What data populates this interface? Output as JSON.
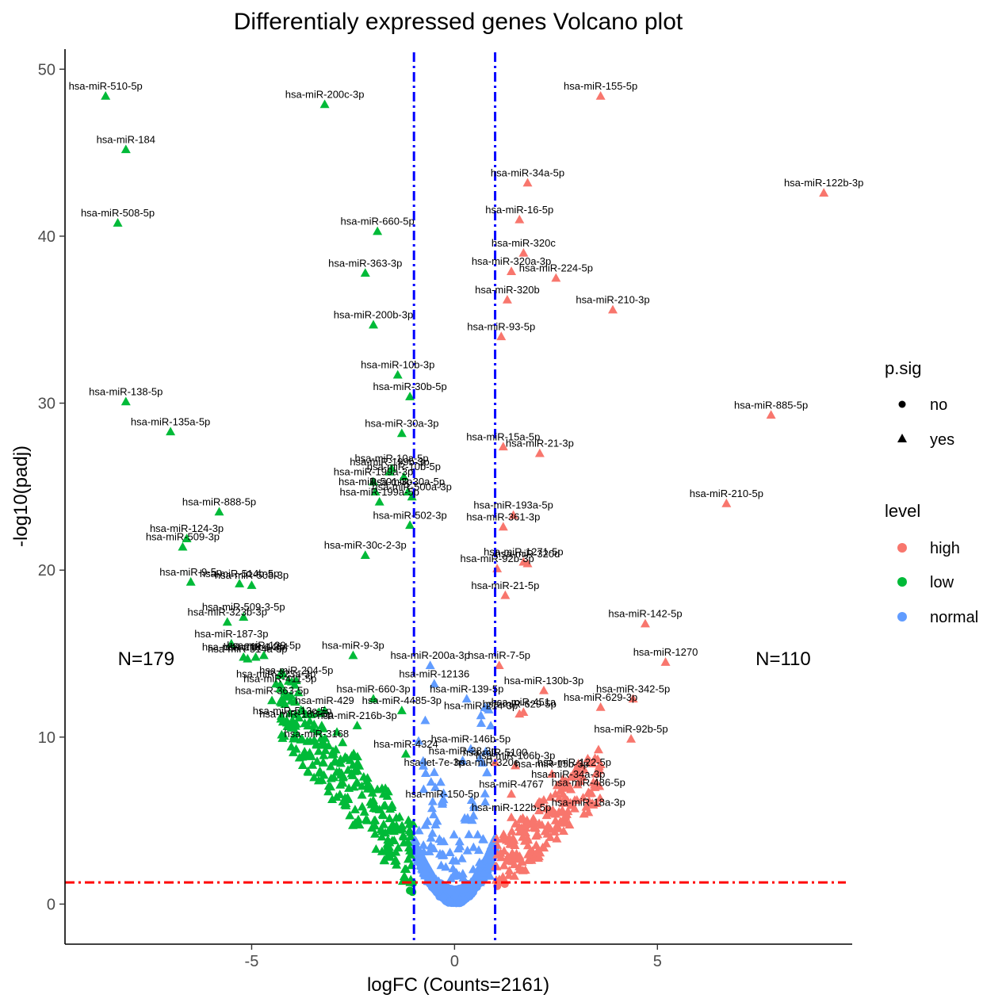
{
  "chart_data": {
    "type": "scatter",
    "title": "Differentialy expressed genes Volcano plot",
    "xlabel": "logFC (Counts=2161)",
    "ylabel": "-log10(padj)",
    "xlim": [
      -9.6,
      9.8
    ],
    "ylim": [
      -2.4,
      51.2
    ],
    "x_ticks": [
      -5,
      0,
      5
    ],
    "y_ticks": [
      0,
      10,
      20,
      30,
      40,
      50
    ],
    "x_tick_labels": [
      "-5",
      "0",
      "5"
    ],
    "y_tick_labels": [
      "0",
      "10",
      "20",
      "30",
      "40",
      "50"
    ],
    "grid": false,
    "legend_position": "right",
    "thresholds": {
      "logfc": [
        -1,
        1
      ],
      "logfc_color": "#0000ff",
      "padj_neglog10": 1.3,
      "padj_color": "#ff0000"
    },
    "annotations": [
      {
        "text": "N=179",
        "x": -7.6,
        "y": 14.3
      },
      {
        "text": "N=110",
        "x": 8.1,
        "y": 14.3
      }
    ],
    "legend": {
      "shape": {
        "title": "p.sig",
        "entries": [
          "no",
          "yes"
        ]
      },
      "color": {
        "title": "level",
        "entries": [
          "high",
          "low",
          "normal"
        ]
      }
    },
    "colors": {
      "high": "#f8766d",
      "low": "#00ba38",
      "normal": "#619cff"
    },
    "series": [
      {
        "name": "high",
        "labeled": [
          {
            "label": "hsa-miR-155-5p",
            "x": 3.6,
            "y": 48.4
          },
          {
            "label": "hsa-miR-122b-3p",
            "x": 9.1,
            "y": 42.6
          },
          {
            "label": "hsa-miR-34a-5p",
            "x": 1.8,
            "y": 43.2
          },
          {
            "label": "hsa-miR-16-5p",
            "x": 1.6,
            "y": 41.0
          },
          {
            "label": "hsa-miR-320c",
            "x": 1.7,
            "y": 39.0
          },
          {
            "label": "hsa-miR-320a-3p",
            "x": 1.4,
            "y": 37.9
          },
          {
            "label": "hsa-miR-224-5p",
            "x": 2.5,
            "y": 37.5
          },
          {
            "label": "hsa-miR-320b",
            "x": 1.3,
            "y": 36.2
          },
          {
            "label": "hsa-miR-210-3p",
            "x": 3.9,
            "y": 35.6
          },
          {
            "label": "hsa-miR-93-5p",
            "x": 1.15,
            "y": 34.0
          },
          {
            "label": "hsa-miR-885-5p",
            "x": 7.8,
            "y": 29.3
          },
          {
            "label": "hsa-miR-15a-5p",
            "x": 1.2,
            "y": 27.4
          },
          {
            "label": "hsa-miR-21-3p",
            "x": 2.1,
            "y": 27.0
          },
          {
            "label": "hsa-miR-210-5p",
            "x": 6.7,
            "y": 24.0
          },
          {
            "label": "hsa-miR-193a-5p",
            "x": 1.45,
            "y": 23.3
          },
          {
            "label": "hsa-miR-361-3p",
            "x": 1.2,
            "y": 22.6
          },
          {
            "label": "hsa-miR-1271-5p",
            "x": 1.7,
            "y": 20.5
          },
          {
            "label": "hsa-miR-320d",
            "x": 1.8,
            "y": 20.4
          },
          {
            "label": "hsa-miR-92b-3p",
            "x": 1.05,
            "y": 20.1
          },
          {
            "label": "hsa-miR-21-5p",
            "x": 1.25,
            "y": 18.5
          },
          {
            "label": "hsa-miR-142-5p",
            "x": 4.7,
            "y": 16.8
          },
          {
            "label": "hsa-miR-1270",
            "x": 5.2,
            "y": 14.5
          },
          {
            "label": "hsa-miR-7-5p",
            "x": 1.1,
            "y": 14.3
          },
          {
            "label": "hsa-miR-130b-3p",
            "x": 2.2,
            "y": 12.8
          },
          {
            "label": "hsa-miR-342-5p",
            "x": 4.4,
            "y": 12.3
          },
          {
            "label": "hsa-miR-629-5p",
            "x": 1.6,
            "y": 11.4
          },
          {
            "label": "hsa-miR-629-3p",
            "x": 3.6,
            "y": 11.8
          },
          {
            "label": "hsa-miR-92b-5p",
            "x": 4.35,
            "y": 9.9
          },
          {
            "label": "hsa-miR-451a",
            "x": 1.7,
            "y": 11.5
          },
          {
            "label": "hsa-miR-5100",
            "x": 1.0,
            "y": 8.5
          },
          {
            "label": "hsa-miR-106b-3p",
            "x": 1.5,
            "y": 8.3
          },
          {
            "label": "hsa-miR-122-5p",
            "x": 2.95,
            "y": 7.9
          },
          {
            "label": "hsa-miR-15b-3p",
            "x": 2.4,
            "y": 7.8
          },
          {
            "label": "hsa-miR-34a-3p",
            "x": 2.8,
            "y": 7.2
          },
          {
            "label": "hsa-miR-4767",
            "x": 1.4,
            "y": 6.6
          },
          {
            "label": "hsa-miR-486-5p",
            "x": 3.3,
            "y": 6.7
          },
          {
            "label": "hsa-miR-122b-5p",
            "x": 1.4,
            "y": 5.2
          },
          {
            "label": "hsa-miR-18a-3p",
            "x": 3.3,
            "y": 5.5
          }
        ]
      },
      {
        "name": "low",
        "labeled": [
          {
            "label": "hsa-miR-510-5p",
            "x": -8.6,
            "y": 48.4
          },
          {
            "label": "hsa-miR-200c-3p",
            "x": -3.2,
            "y": 47.9
          },
          {
            "label": "hsa-miR-184",
            "x": -8.1,
            "y": 45.2
          },
          {
            "label": "hsa-miR-508-5p",
            "x": -8.3,
            "y": 40.8
          },
          {
            "label": "hsa-miR-660-5p",
            "x": -1.9,
            "y": 40.3
          },
          {
            "label": "hsa-miR-363-3p",
            "x": -2.2,
            "y": 37.8
          },
          {
            "label": "hsa-miR-200b-3p",
            "x": -2.0,
            "y": 34.7
          },
          {
            "label": "hsa-miR-10b-3p",
            "x": -1.4,
            "y": 31.7
          },
          {
            "label": "hsa-miR-30b-5p",
            "x": -1.1,
            "y": 30.4
          },
          {
            "label": "hsa-miR-138-5p",
            "x": -8.1,
            "y": 30.1
          },
          {
            "label": "hsa-miR-30a-3p",
            "x": -1.3,
            "y": 28.2
          },
          {
            "label": "hsa-miR-135a-5p",
            "x": -7.0,
            "y": 28.3
          },
          {
            "label": "hsa-miR-10a-5p",
            "x": -1.55,
            "y": 26.1
          },
          {
            "label": "hsa-miR-199b-3p",
            "x": -1.6,
            "y": 25.9
          },
          {
            "label": "hsa-miR-10b-5p",
            "x": -1.25,
            "y": 25.6
          },
          {
            "label": "hsa-miR-199a-3p",
            "x": -2.0,
            "y": 25.3
          },
          {
            "label": "hsa-miR-30a-5p",
            "x": -1.15,
            "y": 24.7
          },
          {
            "label": "hsa-miR-501-3p",
            "x": -1.95,
            "y": 24.7
          },
          {
            "label": "hsa-miR-500a-3p",
            "x": -1.05,
            "y": 24.4
          },
          {
            "label": "hsa-miR-199a-5p",
            "x": -1.85,
            "y": 24.1
          },
          {
            "label": "hsa-miR-888-5p",
            "x": -5.8,
            "y": 23.5
          },
          {
            "label": "hsa-miR-502-3p",
            "x": -1.1,
            "y": 22.7
          },
          {
            "label": "hsa-miR-124-3p",
            "x": -6.6,
            "y": 21.9
          },
          {
            "label": "hsa-miR-509-3p",
            "x": -6.7,
            "y": 21.4
          },
          {
            "label": "hsa-miR-30c-2-3p",
            "x": -2.2,
            "y": 20.9
          },
          {
            "label": "hsa-miR-514b-5p",
            "x": -5.3,
            "y": 19.2
          },
          {
            "label": "hsa-miR-9-5p",
            "x": -6.5,
            "y": 19.3
          },
          {
            "label": "hsa-miR-508-3p",
            "x": -5.0,
            "y": 19.1
          },
          {
            "label": "hsa-miR-509-3-5p",
            "x": -5.2,
            "y": 17.2
          },
          {
            "label": "hsa-miR-323b-3p",
            "x": -5.6,
            "y": 16.9
          },
          {
            "label": "hsa-miR-187-3p",
            "x": -5.5,
            "y": 15.6
          },
          {
            "label": "hsa-miR-129-5p",
            "x": -4.7,
            "y": 14.9
          },
          {
            "label": "hsa-miR-4484",
            "x": -4.9,
            "y": 14.8
          },
          {
            "label": "hsa-miR-218-1-3p",
            "x": -5.2,
            "y": 14.8
          },
          {
            "label": "hsa-miR-514a-5p",
            "x": -5.1,
            "y": 14.7
          },
          {
            "label": "hsa-miR-9-3p",
            "x": -2.5,
            "y": 14.9
          },
          {
            "label": "hsa-miR-323a-3p",
            "x": -4.4,
            "y": 13.2
          },
          {
            "label": "hsa-miR-411-5p",
            "x": -4.3,
            "y": 12.9
          },
          {
            "label": "hsa-miR-204-5p",
            "x": -3.9,
            "y": 13.4
          },
          {
            "label": "hsa-miR-363-5p",
            "x": -4.5,
            "y": 12.2
          },
          {
            "label": "hsa-miR-660-3p",
            "x": -2.0,
            "y": 12.3
          },
          {
            "label": "hsa-miR-429",
            "x": -3.2,
            "y": 11.6
          },
          {
            "label": "hsa-miR-513c-5p",
            "x": -4.0,
            "y": 11.0
          },
          {
            "label": "hsa-miR-4485-3p",
            "x": -1.3,
            "y": 11.6
          },
          {
            "label": "hsa-miR-188-5p",
            "x": -3.9,
            "y": 10.8
          },
          {
            "label": "hsa-miR-216b-3p",
            "x": -2.4,
            "y": 10.7
          },
          {
            "label": "hsa-miR-3168",
            "x": -3.4,
            "y": 9.6
          },
          {
            "label": "hsa-miR-4324",
            "x": -1.2,
            "y": 9.0
          }
        ]
      },
      {
        "name": "normal",
        "labeled": [
          {
            "label": "hsa-miR-200a-3p",
            "x": -0.6,
            "y": 14.3
          },
          {
            "label": "hsa-miR-12136",
            "x": -0.5,
            "y": 13.2
          },
          {
            "label": "hsa-miR-139-5p",
            "x": 0.3,
            "y": 12.3
          },
          {
            "label": "hsa-miR-214-3p",
            "x": 0.65,
            "y": 11.3
          },
          {
            "label": "hsa-miR-146b-5p",
            "x": 0.4,
            "y": 9.3
          },
          {
            "label": "hsa-miR-28-3p",
            "x": 0.2,
            "y": 8.6
          },
          {
            "label": "hsa-let-7e-3p",
            "x": -0.5,
            "y": 7.9
          },
          {
            "label": "hsa-miR-320e",
            "x": 0.8,
            "y": 7.9
          },
          {
            "label": "hsa-miR-150-5p",
            "x": -0.3,
            "y": 6.0
          }
        ]
      }
    ]
  }
}
